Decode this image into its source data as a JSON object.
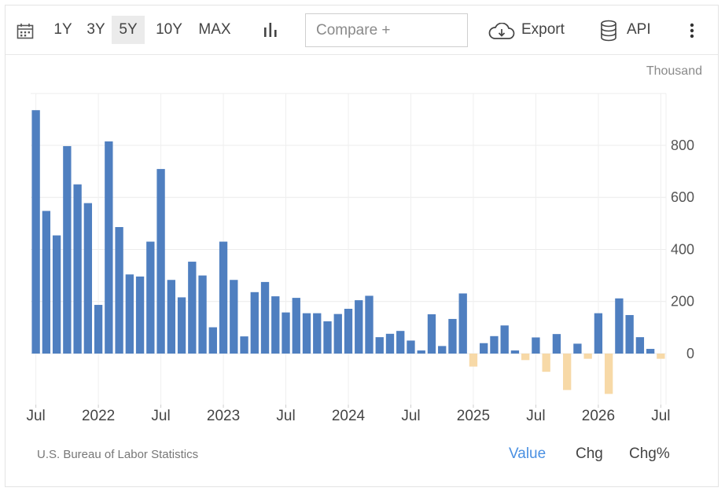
{
  "toolbar": {
    "ranges": [
      "1Y",
      "3Y",
      "5Y",
      "10Y",
      "MAX"
    ],
    "active_range": "5Y",
    "compare_placeholder": "Compare +",
    "export_label": "Export",
    "api_label": "API",
    "icons": [
      "calendar-icon",
      "bar-chart-icon",
      "cloud-download-icon",
      "database-icon",
      "more-vertical-icon"
    ]
  },
  "footer": {
    "source": "U.S. Bureau of Labor Statistics",
    "modes": [
      "Value",
      "Chg",
      "Chg%"
    ],
    "active_mode": "Value"
  },
  "colors": {
    "positive": "#4f7fc0",
    "negative": "#f7d9a7",
    "active_mode": "#4a90e2"
  },
  "chart_data": {
    "type": "bar",
    "unit_label": "Thousand",
    "ylim": [
      -200,
      950
    ],
    "yticks": [
      0,
      200,
      400,
      600,
      800
    ],
    "grid": true,
    "y_axis_side": "right",
    "x_tick_labels": [
      {
        "label": "Jul",
        "index": 0
      },
      {
        "label": "2022",
        "index": 6
      },
      {
        "label": "Jul",
        "index": 12
      },
      {
        "label": "2023",
        "index": 18
      },
      {
        "label": "Jul",
        "index": 24
      },
      {
        "label": "2024",
        "index": 30
      },
      {
        "label": "Jul",
        "index": 36
      },
      {
        "label": "2025",
        "index": 42
      },
      {
        "label": "Jul",
        "index": 48
      },
      {
        "label": "2026",
        "index": 54
      },
      {
        "label": "Jul",
        "index": 60
      }
    ],
    "categories": [
      "Jul 2021",
      "Aug 2021",
      "Sep 2021",
      "Oct 2021",
      "Nov 2021",
      "Dec 2021",
      "Jan 2022",
      "Feb 2022",
      "Mar 2022",
      "Apr 2022",
      "May 2022",
      "Jun 2022",
      "Jul 2022",
      "Aug 2022",
      "Sep 2022",
      "Oct 2022",
      "Nov 2022",
      "Dec 2022",
      "Jan 2023",
      "Feb 2023",
      "Mar 2023",
      "Apr 2023",
      "May 2023",
      "Jun 2023",
      "Jul 2023",
      "Aug 2023",
      "Sep 2023",
      "Oct 2023",
      "Nov 2023",
      "Dec 2023",
      "Jan 2024",
      "Feb 2024",
      "Mar 2024",
      "Apr 2024",
      "May 2024",
      "Jun 2024",
      "Jul 2024",
      "Aug 2024",
      "Sep 2024",
      "Oct 2024",
      "Nov 2024",
      "Dec 2024",
      "Jan 2025",
      "Feb 2025",
      "Mar 2025",
      "Apr 2025",
      "May 2025",
      "Jun 2025",
      "Jul 2025",
      "Aug 2025",
      "Sep 2025",
      "Oct 2025",
      "Nov 2025",
      "Dec 2025",
      "Jan 2026",
      "Feb 2026",
      "Mar 2026",
      "Apr 2026",
      "May 2026",
      "Jun 2026",
      "Jul 2026"
    ],
    "values": [
      935,
      548,
      454,
      797,
      650,
      578,
      187,
      815,
      486,
      304,
      296,
      430,
      709,
      283,
      216,
      353,
      300,
      101,
      430,
      283,
      66,
      236,
      275,
      220,
      158,
      214,
      155,
      155,
      124,
      152,
      172,
      205,
      222,
      63,
      76,
      87,
      50,
      12,
      151,
      29,
      133,
      231,
      -50,
      40,
      67,
      108,
      12,
      -25,
      62,
      -70,
      75,
      -140,
      38,
      -20,
      155,
      -155,
      212,
      148,
      63,
      18,
      -20
    ]
  }
}
